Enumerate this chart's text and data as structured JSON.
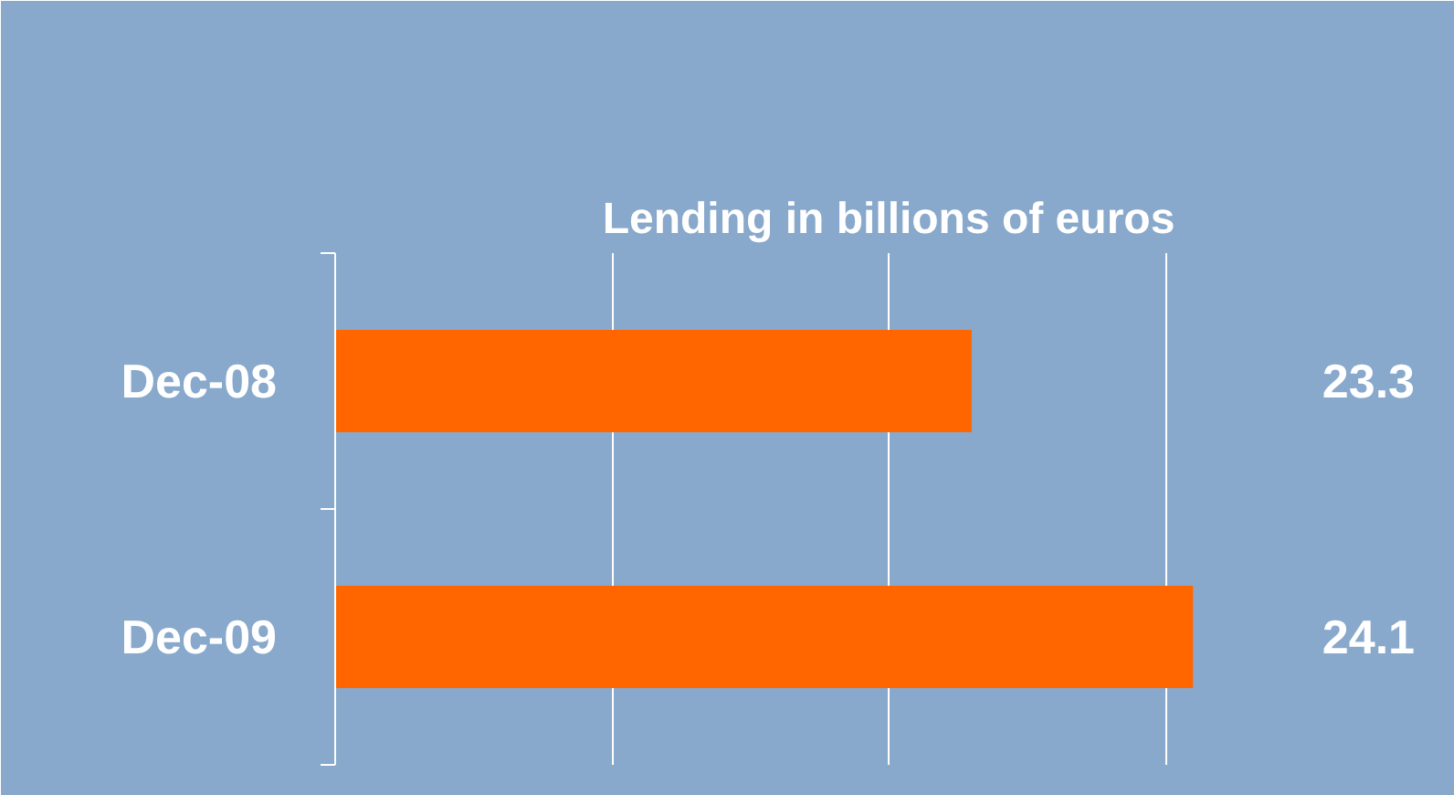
{
  "chart_data": {
    "type": "bar",
    "orientation": "horizontal",
    "title": "Lending in billions of euros",
    "categories": [
      "Dec-08",
      "Dec-09"
    ],
    "values": [
      23.3,
      24.1
    ],
    "color": "#ff6600",
    "xlim": [
      21,
      25
    ],
    "xticks": [
      {
        "value": 22,
        "label": null
      },
      {
        "value": 23,
        "label": null
      },
      {
        "value": 24,
        "label": null
      }
    ],
    "grid": "x",
    "tick_labels": "y",
    "data_labels": true
  }
}
